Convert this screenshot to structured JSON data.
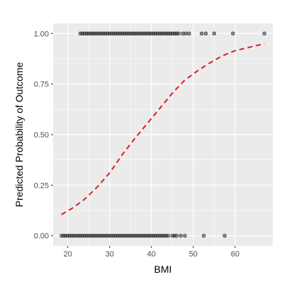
{
  "chart_data": {
    "type": "scatter",
    "title": "",
    "xlabel": "BMI",
    "ylabel": "Predicted Probability of Outcome",
    "xlim": [
      16.5,
      69
    ],
    "ylim": [
      -0.05,
      1.05
    ],
    "x_ticks": [
      20,
      30,
      40,
      50,
      60
    ],
    "x_tick_labels": [
      "20",
      "30",
      "40",
      "50",
      "60"
    ],
    "y_ticks": [
      0,
      0.25,
      0.5,
      0.75,
      1
    ],
    "y_tick_labels": [
      "0.00",
      "0.25",
      "0.50",
      "0.75",
      "1.00"
    ],
    "grid": true,
    "legend": "none",
    "colors": {
      "panel": "#ebebeb",
      "grid": "#ffffff",
      "points": "#333333",
      "curve": "#e41a1c"
    },
    "series": [
      {
        "kind": "points",
        "y": 1,
        "x": [
          23,
          23.5,
          24,
          24.5,
          25,
          25.5,
          26,
          26.5,
          27,
          27.5,
          28,
          28.5,
          29,
          29.5,
          30,
          30.5,
          31,
          31.5,
          32,
          32.5,
          33,
          33.5,
          34,
          34.5,
          35,
          35.5,
          36,
          36.5,
          37,
          37.5,
          38,
          38.5,
          39,
          39.5,
          40,
          40.5,
          41,
          41.5,
          42,
          42.5,
          43,
          43.5,
          44,
          44.5,
          45,
          45.5,
          46,
          46.5,
          47.5,
          48.2,
          49,
          52,
          53,
          55,
          59.5,
          67
        ]
      },
      {
        "kind": "points",
        "y": 0,
        "x": [
          18.5,
          19,
          19.5,
          20,
          20.5,
          21,
          21.5,
          22,
          22.5,
          23,
          23.5,
          24,
          24.5,
          25,
          25.5,
          26,
          26.5,
          27,
          27.5,
          28,
          28.5,
          29,
          29.5,
          30,
          30.5,
          31,
          31.5,
          32,
          32.5,
          33,
          33.5,
          34,
          34.5,
          35,
          35.5,
          36,
          36.5,
          37,
          37.5,
          38,
          38.5,
          39,
          39.5,
          40,
          40.5,
          41,
          41.5,
          42,
          42.5,
          43,
          43.5,
          44,
          45,
          45.5,
          46,
          47,
          48,
          52.5,
          57.5
        ]
      },
      {
        "kind": "curve",
        "style": "dashed",
        "x": [
          18.5,
          21,
          24,
          27,
          30,
          33,
          36,
          39,
          42,
          45,
          48,
          51,
          54,
          57,
          60,
          63,
          66,
          67
        ],
        "y": [
          0.105,
          0.135,
          0.18,
          0.24,
          0.31,
          0.4,
          0.48,
          0.555,
          0.63,
          0.705,
          0.77,
          0.815,
          0.855,
          0.89,
          0.915,
          0.93,
          0.945,
          0.95
        ]
      }
    ]
  }
}
